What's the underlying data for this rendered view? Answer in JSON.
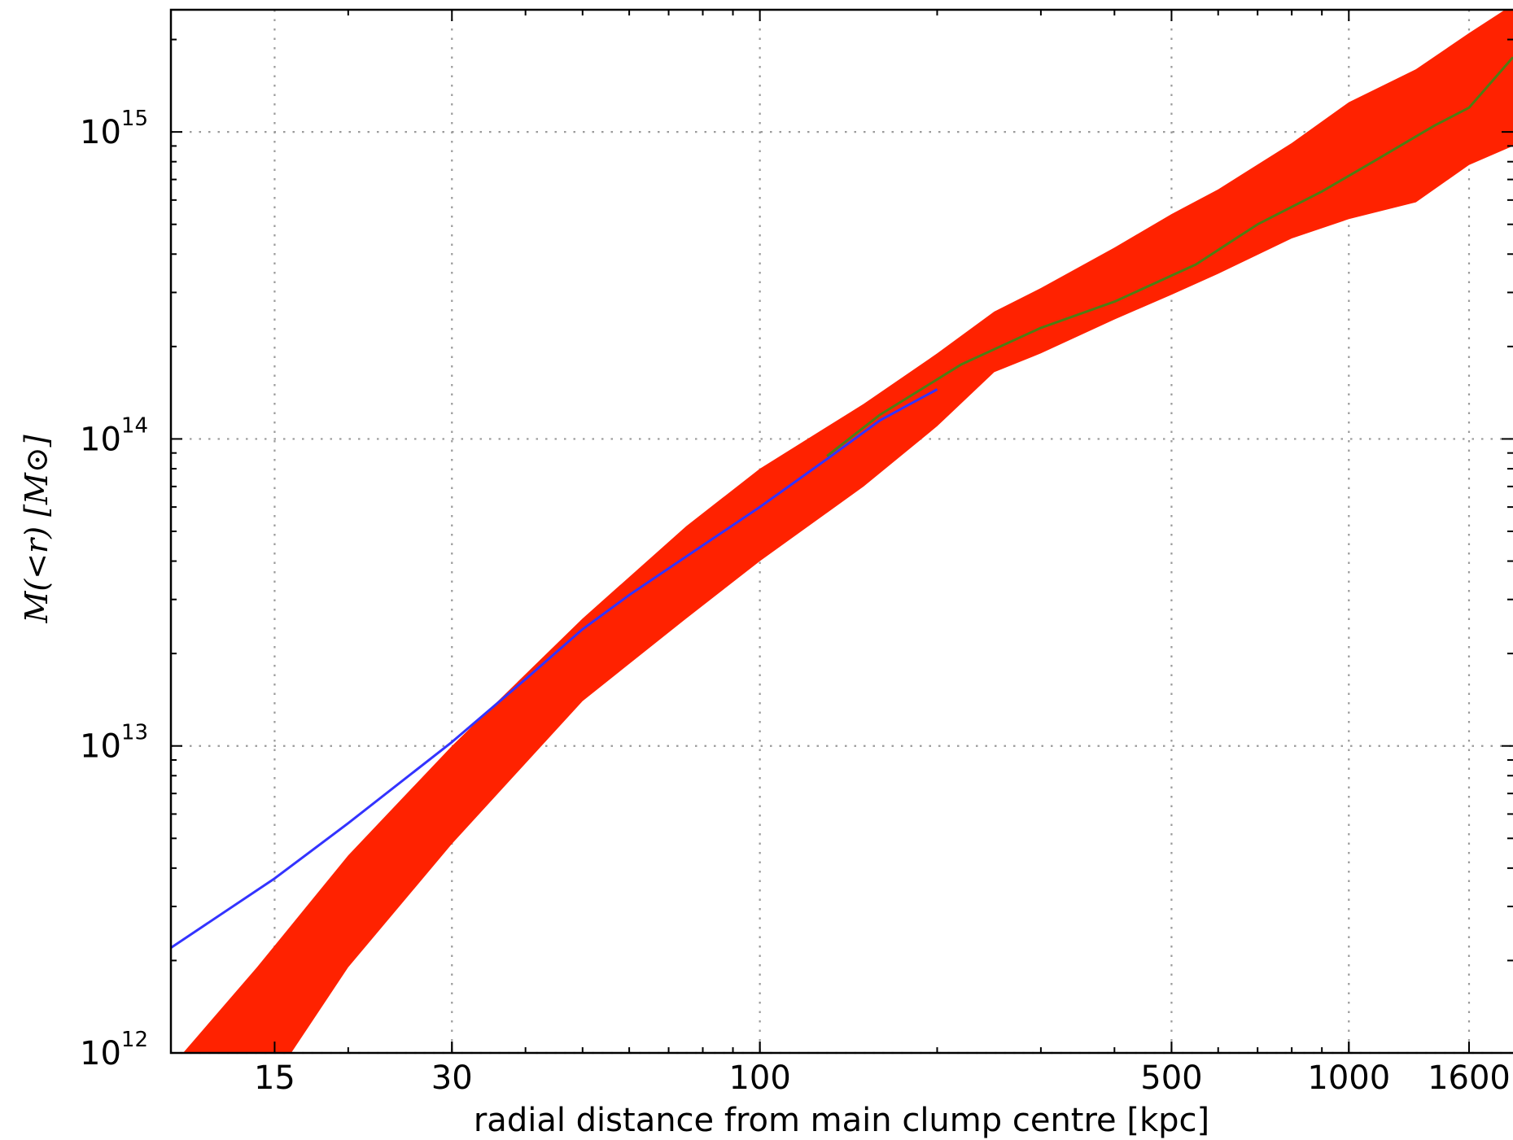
{
  "chart_data": {
    "type": "area",
    "title": "",
    "xlabel": "radial distance from main clump centre [kpc]",
    "ylabel": "M(<r) [M⊙]",
    "xscale": "log",
    "yscale": "log",
    "xlim": [
      10,
      1900
    ],
    "ylim": [
      1000000000000.0,
      2500000000000000.0
    ],
    "grid": true,
    "x_ticks": [
      15,
      30,
      100,
      500,
      1000,
      1600
    ],
    "x_tick_labels": [
      "15",
      "30",
      "100",
      "500",
      "1000",
      "1600"
    ],
    "y_ticks": [
      1000000000000.0,
      10000000000000.0,
      100000000000000.0,
      1000000000000000.0
    ],
    "y_tick_labels": [
      {
        "base": "10",
        "exp": "12"
      },
      {
        "base": "10",
        "exp": "13"
      },
      {
        "base": "10",
        "exp": "14"
      },
      {
        "base": "10",
        "exp": "15"
      }
    ],
    "band": {
      "color": "#ff2200",
      "upper": [
        [
          10,
          900000000000.0
        ],
        [
          14,
          1900000000000.0
        ],
        [
          20,
          4400000000000.0
        ],
        [
          30,
          10000000000000.0
        ],
        [
          50,
          26000000000000.0
        ],
        [
          75,
          52000000000000.0
        ],
        [
          100,
          80000000000000.0
        ],
        [
          150,
          130000000000000.0
        ],
        [
          200,
          190000000000000.0
        ],
        [
          250,
          260000000000000.0
        ],
        [
          300,
          310000000000000.0
        ],
        [
          400,
          420000000000000.0
        ],
        [
          500,
          540000000000000.0
        ],
        [
          600,
          650000000000000.0
        ],
        [
          800,
          920000000000000.0
        ],
        [
          1000,
          1250000000000000.0
        ],
        [
          1300,
          1600000000000000.0
        ],
        [
          1600,
          2100000000000000.0
        ],
        [
          1900,
          2600000000000000.0
        ]
      ],
      "lower": [
        [
          10,
          500000000000.0
        ],
        [
          14,
          680000000000.0
        ],
        [
          20,
          1900000000000.0
        ],
        [
          30,
          4800000000000.0
        ],
        [
          50,
          14000000000000.0
        ],
        [
          75,
          26000000000000.0
        ],
        [
          100,
          40000000000000.0
        ],
        [
          150,
          70000000000000.0
        ],
        [
          200,
          110000000000000.0
        ],
        [
          250,
          165000000000000.0
        ],
        [
          300,
          190000000000000.0
        ],
        [
          400,
          245000000000000.0
        ],
        [
          500,
          295000000000000.0
        ],
        [
          600,
          345000000000000.0
        ],
        [
          800,
          450000000000000.0
        ],
        [
          1000,
          520000000000000.0
        ],
        [
          1300,
          590000000000000.0
        ],
        [
          1600,
          780000000000000.0
        ],
        [
          1900,
          900000000000000.0
        ]
      ]
    },
    "series": [
      {
        "color": "#3333ff",
        "points": [
          [
            10,
            2200000000000.0
          ],
          [
            15,
            3700000000000.0
          ],
          [
            20,
            5600000000000.0
          ],
          [
            30,
            10300000000000.0
          ],
          [
            40,
            16500000000000.0
          ],
          [
            50,
            24000000000000.0
          ],
          [
            60,
            31000000000000.0
          ],
          [
            80,
            45000000000000.0
          ],
          [
            100,
            60000000000000.0
          ],
          [
            130,
            86000000000000.0
          ],
          [
            160,
            115000000000000.0
          ],
          [
            200,
            145000000000000.0
          ]
        ]
      },
      {
        "color": "#4e7d14",
        "points": [
          [
            130,
            88000000000000.0
          ],
          [
            160,
            120000000000000.0
          ],
          [
            220,
            175000000000000.0
          ],
          [
            300,
            230000000000000.0
          ],
          [
            400,
            280000000000000.0
          ],
          [
            550,
            370000000000000.0
          ],
          [
            700,
            500000000000000.0
          ],
          [
            900,
            640000000000000.0
          ],
          [
            1100,
            800000000000000.0
          ],
          [
            1400,
            1050000000000000.0
          ],
          [
            1600,
            1200000000000000.0
          ],
          [
            1900,
            1750000000000000.0
          ]
        ]
      }
    ]
  }
}
